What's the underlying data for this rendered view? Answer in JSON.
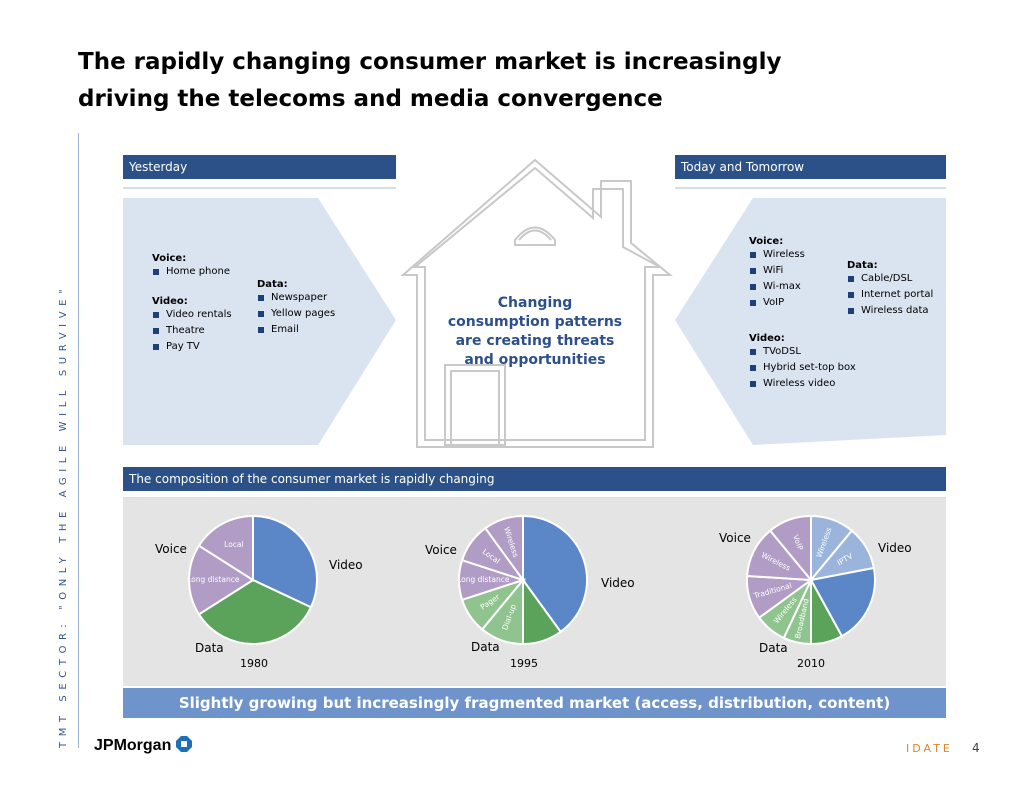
{
  "title": {
    "line1": "The rapidly changing consumer market is increasingly",
    "line2": "driving the  telecoms and media convergence"
  },
  "sidebar_text": "TMT SECTOR: \"ONLY THE AGILE WILL SURVIVE\"",
  "yesterday": {
    "header": "Yesterday",
    "voice_label": "Voice:",
    "voice_items": [
      "Home phone"
    ],
    "video_label": "Video:",
    "video_items": [
      "Video rentals",
      "Theatre",
      "Pay TV"
    ],
    "data_label": "Data:",
    "data_items": [
      "Newspaper",
      "Yellow pages",
      "Email"
    ]
  },
  "today": {
    "header": "Today and Tomorrow",
    "voice_label": "Voice:",
    "voice_items": [
      "Wireless",
      "WiFi",
      "Wi-max",
      "VoIP"
    ],
    "data_label": "Data:",
    "data_items": [
      "Cable/DSL",
      "Internet portal",
      "Wireless data"
    ],
    "video_label": "Video:",
    "video_items": [
      "TVoDSL",
      "Hybrid set-top box",
      "Wireless video"
    ]
  },
  "house_text": "Changing consumption patterns are creating threats and opportunities",
  "composition": {
    "header": "The composition of the consumer market is rapidly changing"
  },
  "chart_data": [
    {
      "type": "pie",
      "title": "1980",
      "labels": [
        "Voice",
        "Video",
        "Data"
      ],
      "slices": [
        {
          "group": "Video",
          "label": "",
          "value": 32,
          "color": "#5b87c8"
        },
        {
          "group": "Data",
          "label": "",
          "value": 34,
          "color": "#5ba35b"
        },
        {
          "group": "Voice",
          "label": "Long distance",
          "value": 18,
          "color": "#b09cc4"
        },
        {
          "group": "Voice",
          "label": "Local",
          "value": 16,
          "color": "#b09cc4"
        }
      ]
    },
    {
      "type": "pie",
      "title": "1995",
      "labels": [
        "Voice",
        "Video",
        "Data"
      ],
      "slices": [
        {
          "group": "Video",
          "label": "",
          "value": 40,
          "color": "#5b87c8"
        },
        {
          "group": "Data",
          "label": "",
          "value": 10,
          "color": "#5ba35b"
        },
        {
          "group": "Data",
          "label": "Dial-up",
          "value": 11,
          "color": "#8fc48f"
        },
        {
          "group": "Data",
          "label": "Pager",
          "value": 9,
          "color": "#8fc48f"
        },
        {
          "group": "Voice",
          "label": "Long distance",
          "value": 10,
          "color": "#b09cc4"
        },
        {
          "group": "Voice",
          "label": "Local",
          "value": 10,
          "color": "#b09cc4"
        },
        {
          "group": "Voice",
          "label": "Wireless",
          "value": 10,
          "color": "#b09cc4"
        }
      ]
    },
    {
      "type": "pie",
      "title": "2010",
      "labels": [
        "Voice",
        "Video",
        "Data"
      ],
      "slices": [
        {
          "group": "Video",
          "label": "Wireless",
          "value": 11,
          "color": "#9ab4dc"
        },
        {
          "group": "Video",
          "label": "IPTV",
          "value": 11,
          "color": "#9ab4dc"
        },
        {
          "group": "Video",
          "label": "",
          "value": 20,
          "color": "#5b87c8"
        },
        {
          "group": "Data",
          "label": "",
          "value": 8,
          "color": "#5ba35b"
        },
        {
          "group": "Data",
          "label": "Broadband",
          "value": 7,
          "color": "#8fc48f"
        },
        {
          "group": "Data",
          "label": "Wireless",
          "value": 8,
          "color": "#8fc48f"
        },
        {
          "group": "Voice",
          "label": "Traditional",
          "value": 11,
          "color": "#b09cc4"
        },
        {
          "group": "Voice",
          "label": "Wireless",
          "value": 13,
          "color": "#b09cc4"
        },
        {
          "group": "Voice",
          "label": "VoIP",
          "value": 11,
          "color": "#b09cc4"
        }
      ]
    }
  ],
  "bottom_banner": "Slightly growing but increasingly fragmented market (access, distribution, content)",
  "footer": {
    "logo": "JPMorgan",
    "brand": "IDATE",
    "page": "4"
  },
  "colors": {
    "header_blue": "#2b5188",
    "panel_light": "#dae3f0",
    "banner_blue": "#6f94cc",
    "accent_orange": "#e0862b"
  }
}
